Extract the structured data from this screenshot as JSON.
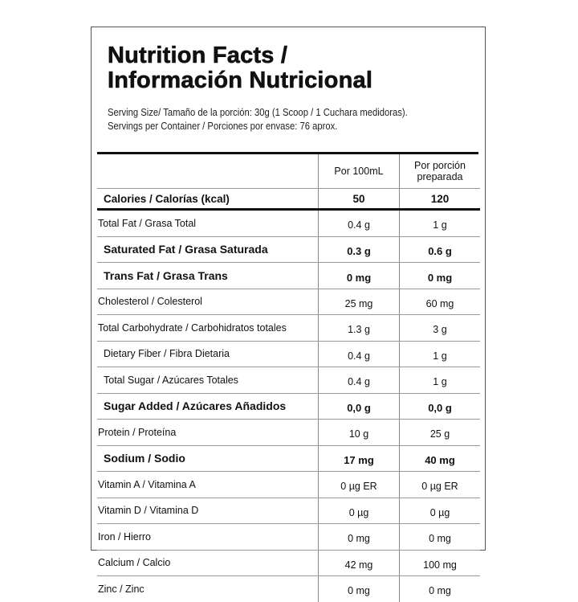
{
  "title": [
    "Nutrition Facts /",
    "Información Nutricional"
  ],
  "serving_size": "Serving Size/ Tamaño de la porción: 30g  (1 Scoop / 1 Cuchara medidoras).",
  "servings_per_container": "Servings per Container / Porciones por envase: 76 aprox.",
  "columns": [
    "Por 100mL",
    "Por porción preparada"
  ],
  "calories": {
    "label": "Calories / Calorías (kcal)",
    "v1": "50",
    "v2": "120"
  },
  "rows": [
    {
      "label": "Total Fat / Grasa Total",
      "v1": "0.4 g",
      "v2": "1 g",
      "style": ""
    },
    {
      "label": "Saturated Fat / Grasa Saturada",
      "v1": "0.3 g",
      "v2": "0.6 g",
      "style": "b"
    },
    {
      "label": "Trans Fat / Grasa Trans",
      "v1": "0 mg",
      "v2": "0 mg",
      "style": "b"
    },
    {
      "label": "Cholesterol / Colesterol",
      "v1": "25 mg",
      "v2": "60 mg",
      "style": ""
    },
    {
      "label": "Total Carbohydrate / Carbohidratos totales",
      "v1": "1.3 g",
      "v2": "3 g",
      "style": ""
    },
    {
      "label": "Dietary Fiber / Fibra Dietaria",
      "v1": "0.4 g",
      "v2": "1 g",
      "style": "ind"
    },
    {
      "label": "Total Sugar / Azúcares Totales",
      "v1": "0.4 g",
      "v2": "1 g",
      "style": "ind"
    },
    {
      "label": "Sugar Added / Azúcares Añadidos",
      "v1": "0,0 g",
      "v2": "0,0 g",
      "style": "b"
    },
    {
      "label": "Protein / Proteína",
      "v1": "10 g",
      "v2": "25 g",
      "style": ""
    },
    {
      "label": "Sodium / Sodio",
      "v1": "17 mg",
      "v2": "40 mg",
      "style": "b"
    },
    {
      "label": "Vitamin A / Vitamina A",
      "v1": "0 µg ER",
      "v2": "0 µg ER",
      "style": ""
    },
    {
      "label": "Vitamin D / Vitamina D",
      "v1": "0 µg",
      "v2": "0 µg",
      "style": ""
    },
    {
      "label": "Iron / Hierro",
      "v1": "0 mg",
      "v2": "0 mg",
      "style": ""
    },
    {
      "label": "Calcium / Calcio",
      "v1": "42 mg",
      "v2": "100 mg",
      "style": ""
    },
    {
      "label": "Zinc / Zinc",
      "v1": "0 mg",
      "v2": "0 mg",
      "style": ""
    }
  ]
}
